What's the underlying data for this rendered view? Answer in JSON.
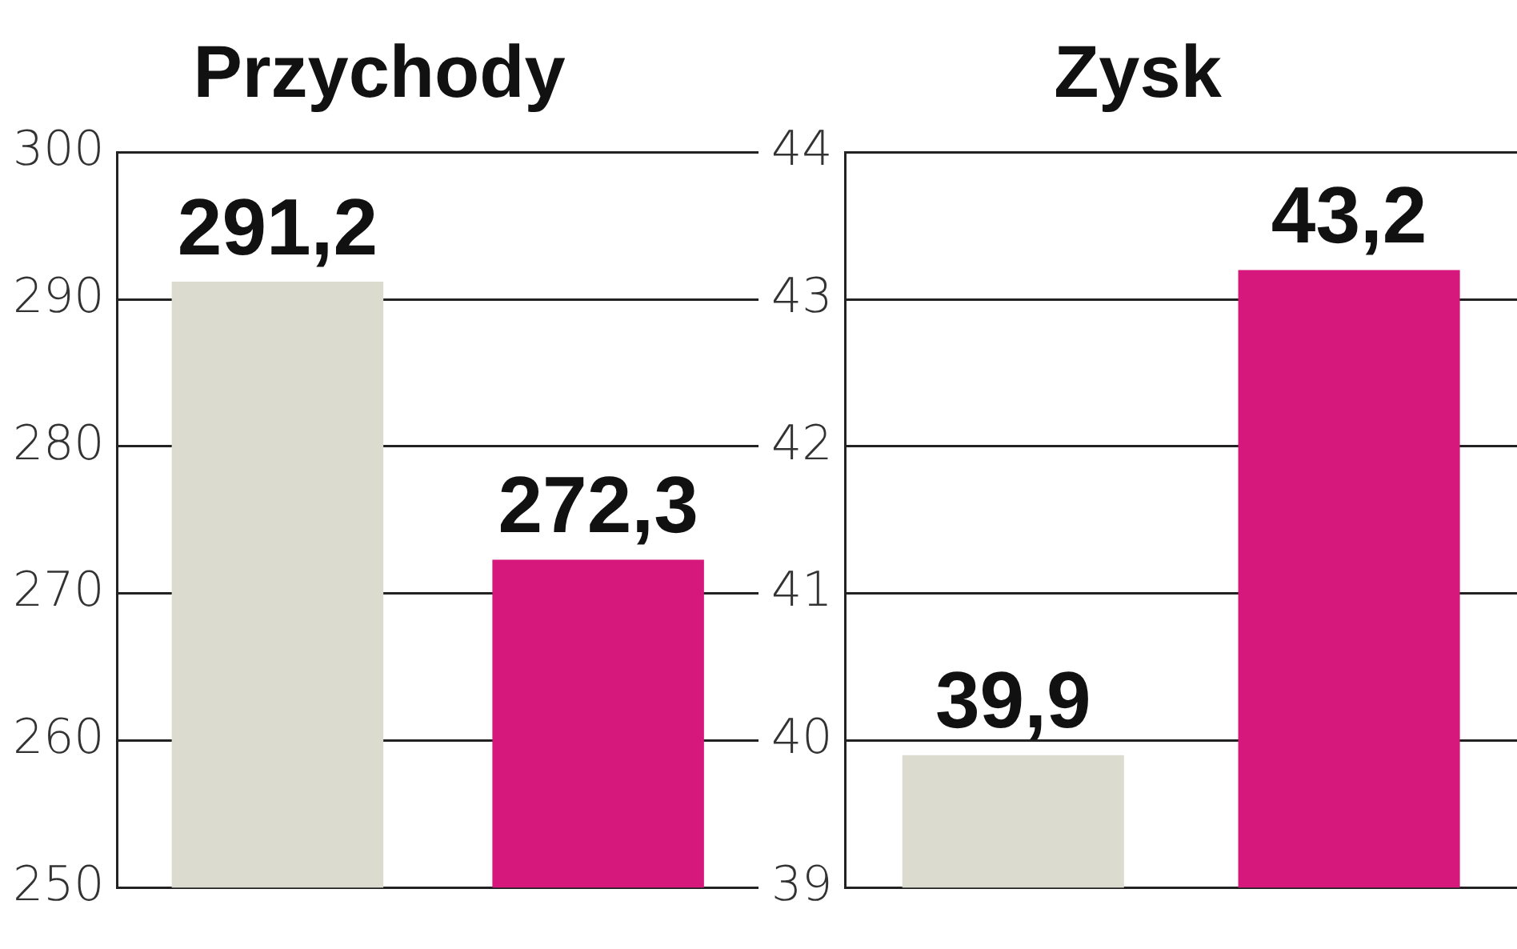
{
  "chart_data": [
    {
      "type": "bar",
      "title": "Przychody",
      "categories": [
        null,
        null
      ],
      "colors": [
        "#dcdbd0",
        "#d6177b"
      ],
      "values": [
        291.2,
        272.3
      ],
      "value_labels": [
        "291,2",
        "272,3"
      ],
      "ylim": [
        250,
        300
      ],
      "yticks": [
        250,
        260,
        270,
        280,
        290,
        300
      ],
      "grid": "y",
      "legend": false
    },
    {
      "type": "bar",
      "title": "Zysk",
      "categories": [
        null,
        null
      ],
      "colors": [
        "#dcdbd0",
        "#d6177b"
      ],
      "values": [
        39.9,
        43.2
      ],
      "value_labels": [
        "39,9",
        "43,2"
      ],
      "ylim": [
        39,
        44
      ],
      "yticks": [
        39,
        40,
        41,
        42,
        43,
        44
      ],
      "grid": "y",
      "legend": false
    }
  ]
}
